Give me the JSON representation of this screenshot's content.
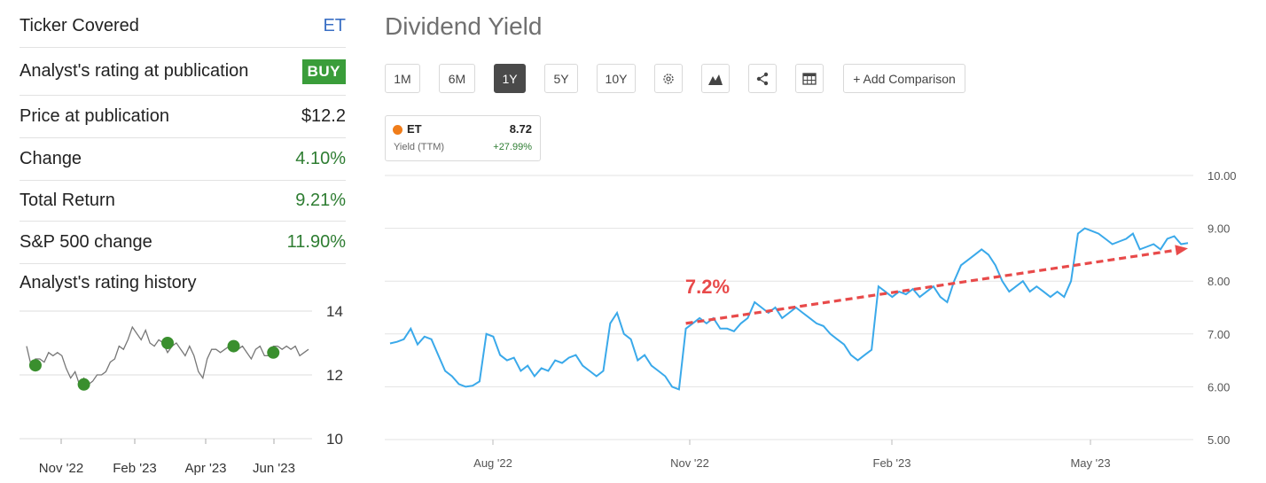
{
  "left_panel": {
    "rows": [
      {
        "label": "Ticker Covered",
        "value": "ET",
        "style": "blue"
      },
      {
        "label": "Analyst's rating at publication",
        "value": "BUY",
        "style": "badge"
      },
      {
        "label": "Price at publication",
        "value": "$12.2",
        "style": "dark"
      },
      {
        "label": "Change",
        "value": "4.10%",
        "style": "green"
      },
      {
        "label": "Total Return",
        "value": "9.21%",
        "style": "green"
      },
      {
        "label": "S&P 500 change",
        "value": "11.90%",
        "style": "green"
      }
    ],
    "history_title": "Analyst's rating history"
  },
  "main": {
    "title": "Dividend Yield",
    "ranges": [
      "1M",
      "6M",
      "1Y",
      "5Y",
      "10Y"
    ],
    "active_range": "1Y",
    "tools": [
      "settings-icon",
      "chart-type-icon",
      "share-icon",
      "table-icon"
    ],
    "add_comparison": "+ Add Comparison",
    "legend": {
      "ticker": "ET",
      "value": "8.72",
      "sub": "Yield (TTM)",
      "change": "+27.99%",
      "dot_color": "#f07d1a"
    },
    "annotation": "7.2%"
  },
  "chart_data": [
    {
      "type": "line",
      "title": "",
      "xlabel": "",
      "ylabel": "",
      "x_ticks": [
        "Nov '22",
        "Feb '23",
        "Apr '23",
        "Jun '23"
      ],
      "y_ticks": [
        "10",
        "12",
        "14"
      ],
      "ylim": [
        10,
        14
      ],
      "grid": true,
      "line_color": "#777777",
      "series": [
        {
          "values": [
            12.9,
            12.3,
            12.5,
            12.5,
            12.4,
            12.7,
            12.6,
            12.7,
            12.6,
            12.2,
            11.9,
            12.1,
            11.7,
            11.9,
            11.7,
            11.8,
            12.0,
            12.0,
            12.1,
            12.4,
            12.5,
            12.9,
            12.8,
            13.1,
            13.5,
            13.3,
            13.1,
            13.4,
            13.0,
            12.9,
            13.1,
            13.0,
            12.7,
            12.9,
            13.0,
            12.8,
            12.6,
            12.9,
            12.6,
            12.1,
            11.9,
            12.5,
            12.8,
            12.8,
            12.7,
            12.8,
            12.9,
            13.0,
            12.8,
            12.9,
            12.7,
            12.5,
            12.8,
            12.9,
            12.6,
            12.6,
            12.9,
            12.9,
            12.8,
            12.9,
            12.8,
            12.9,
            12.6,
            12.7,
            12.8
          ]
        }
      ],
      "rating_markers": [
        {
          "index": 2,
          "value": 12.3,
          "label": "BUY"
        },
        {
          "index": 13,
          "value": 11.7,
          "label": "BUY"
        },
        {
          "index": 32,
          "value": 13.0,
          "label": "BUY"
        },
        {
          "index": 47,
          "value": 12.9,
          "label": "BUY"
        },
        {
          "index": 56,
          "value": 12.7,
          "label": "BUY"
        }
      ],
      "marker_color": "#3a8f2e"
    },
    {
      "type": "line",
      "title": "Dividend Yield",
      "xlabel": "",
      "ylabel": "",
      "x_ticks": [
        "Aug '22",
        "Nov '22",
        "Feb '23",
        "May '23"
      ],
      "y_ticks": [
        "5.00",
        "6.00",
        "7.00",
        "8.00",
        "9.00",
        "10.00"
      ],
      "ylim": [
        5,
        10
      ],
      "grid": true,
      "line_color": "#3aa9ea",
      "series": [
        {
          "name": "ET",
          "values": [
            6.82,
            6.85,
            6.9,
            7.1,
            6.8,
            6.95,
            6.9,
            6.6,
            6.3,
            6.2,
            6.05,
            6.0,
            6.02,
            6.1,
            7.0,
            6.95,
            6.6,
            6.5,
            6.55,
            6.3,
            6.4,
            6.2,
            6.35,
            6.3,
            6.5,
            6.45,
            6.55,
            6.6,
            6.4,
            6.3,
            6.2,
            6.3,
            7.2,
            7.4,
            7.0,
            6.9,
            6.5,
            6.6,
            6.4,
            6.3,
            6.2,
            6.0,
            5.95,
            7.1,
            7.2,
            7.3,
            7.2,
            7.3,
            7.1,
            7.1,
            7.05,
            7.2,
            7.3,
            7.6,
            7.5,
            7.4,
            7.5,
            7.3,
            7.4,
            7.5,
            7.4,
            7.3,
            7.2,
            7.15,
            7.0,
            6.9,
            6.8,
            6.6,
            6.5,
            6.6,
            6.7,
            7.9,
            7.8,
            7.7,
            7.8,
            7.75,
            7.85,
            7.7,
            7.8,
            7.9,
            7.7,
            7.6,
            8.0,
            8.3,
            8.4,
            8.5,
            8.6,
            8.5,
            8.3,
            8.0,
            7.8,
            7.9,
            8.0,
            7.8,
            7.9,
            7.8,
            7.7,
            7.8,
            7.7,
            8.0,
            8.9,
            9.0,
            8.95,
            8.9,
            8.8,
            8.7,
            8.75,
            8.8,
            8.9,
            8.6,
            8.65,
            8.7,
            8.6,
            8.8,
            8.85,
            8.7,
            8.72
          ]
        }
      ],
      "trend_arrow": {
        "from": {
          "index": 43,
          "value": 7.2
        },
        "to": {
          "index": 116,
          "value": 8.62
        },
        "color": "#e84a4a"
      },
      "annotation_color": "#e84a4a"
    }
  ]
}
